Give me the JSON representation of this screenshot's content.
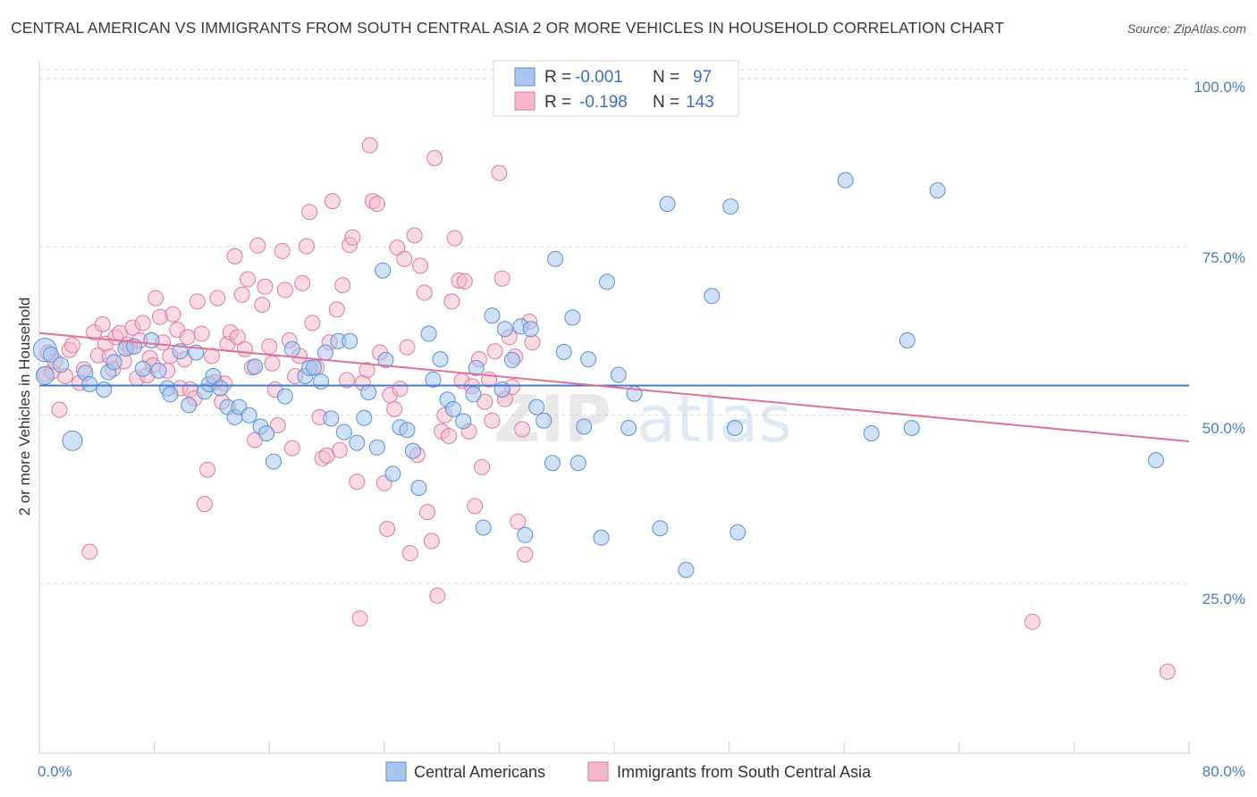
{
  "title": "CENTRAL AMERICAN VS IMMIGRANTS FROM SOUTH CENTRAL ASIA 2 OR MORE VEHICLES IN HOUSEHOLD CORRELATION CHART",
  "source": "Source: ZipAtlas.com",
  "watermark": {
    "zip": "ZIP",
    "atlas": "atlas"
  },
  "colors": {
    "blue": "#5b8fd6",
    "blue_fill": "#aac6ee",
    "pink": "#e07aa0",
    "pink_fill": "#f4b6cb",
    "blue_line": "#3f7bd0",
    "pink_line": "#e0709a",
    "grid": "#dcdcdc",
    "tick_text": "#4a7bc8"
  },
  "legend": {
    "rows": [
      {
        "r_label": "R =",
        "r_value": "-0.001",
        "n_label": "N =",
        "n_value": "97"
      },
      {
        "r_label": "R =",
        "r_value": "-0.198",
        "n_label": "N =",
        "n_value": "143"
      }
    ]
  },
  "bottom_legend": [
    "Central Americans",
    "Immigrants from South Central Asia"
  ],
  "chart_data": {
    "type": "scatter",
    "title": "CENTRAL AMERICAN VS IMMIGRANTS FROM SOUTH CENTRAL ASIA 2 OR MORE VEHICLES IN HOUSEHOLD CORRELATION CHART",
    "ylabel": "2 or more Vehicles in Household",
    "xlabel": "",
    "xlim": [
      0,
      80
    ],
    "ylim": [
      0,
      105
    ],
    "x_tick_labels": [
      "0.0%",
      "80.0%"
    ],
    "y_tick_labels": [
      "25.0%",
      "50.0%",
      "75.0%",
      "100.0%"
    ],
    "y_ticks": [
      25,
      50,
      75,
      100
    ],
    "grid": true,
    "legend_position": "top-center",
    "series": [
      {
        "name": "Central Americans",
        "color": "#5b8fd6",
        "trend": {
          "x": [
            0,
            80
          ],
          "y": [
            54.4,
            54.4
          ]
        },
        "points": [
          [
            0.4,
            59.7
          ],
          [
            0.8,
            59
          ],
          [
            1.5,
            57.5
          ],
          [
            2.3,
            46.2
          ],
          [
            3.2,
            56.3
          ],
          [
            3.5,
            54.6
          ],
          [
            4.5,
            53.8
          ],
          [
            4.8,
            56.4
          ],
          [
            5.2,
            57.9
          ],
          [
            6,
            59.9
          ],
          [
            6.6,
            60.2
          ],
          [
            7.2,
            56.9
          ],
          [
            7.8,
            61.1
          ],
          [
            8.3,
            56.6
          ],
          [
            8.9,
            54
          ],
          [
            9.1,
            53.1
          ],
          [
            9.8,
            59.5
          ],
          [
            10.4,
            51.5
          ],
          [
            10.9,
            59.3
          ],
          [
            11.5,
            53.5
          ],
          [
            11.8,
            54.6
          ],
          [
            12.1,
            55.8
          ],
          [
            12.6,
            54
          ],
          [
            13.1,
            51.2
          ],
          [
            13.6,
            49.7
          ],
          [
            13.9,
            51.2
          ],
          [
            14.6,
            50
          ],
          [
            15,
            57.2
          ],
          [
            15.4,
            48.3
          ],
          [
            15.8,
            47.3
          ],
          [
            16.3,
            43.1
          ],
          [
            17.1,
            52.8
          ],
          [
            17.6,
            59.8
          ],
          [
            18.5,
            55.8
          ],
          [
            18.8,
            57
          ],
          [
            19.1,
            57.1
          ],
          [
            19.6,
            55
          ],
          [
            19.9,
            59.3
          ],
          [
            20.3,
            49.5
          ],
          [
            20.8,
            61
          ],
          [
            21.2,
            47.5
          ],
          [
            21.6,
            61
          ],
          [
            22.1,
            45.9
          ],
          [
            22.6,
            49.6
          ],
          [
            22.9,
            53.4
          ],
          [
            23.5,
            45.2
          ],
          [
            23.9,
            71.5
          ],
          [
            24.1,
            58.2
          ],
          [
            24.6,
            41.3
          ],
          [
            25.1,
            48.2
          ],
          [
            25.6,
            47.8
          ],
          [
            26,
            44.7
          ],
          [
            26.4,
            39.2
          ],
          [
            27.1,
            62.1
          ],
          [
            27.4,
            55.3
          ],
          [
            27.9,
            58.3
          ],
          [
            28.4,
            52.3
          ],
          [
            28.8,
            50.9
          ],
          [
            29.5,
            49.1
          ],
          [
            30.2,
            53.1
          ],
          [
            30.4,
            57
          ],
          [
            30.9,
            33.3
          ],
          [
            31.5,
            64.8
          ],
          [
            32.2,
            53.8
          ],
          [
            32.4,
            62.8
          ],
          [
            32.9,
            58.2
          ],
          [
            33.5,
            63.2
          ],
          [
            33.8,
            32.2
          ],
          [
            34.2,
            62.8
          ],
          [
            34.6,
            51.2
          ],
          [
            35.1,
            49.2
          ],
          [
            35.7,
            42.9
          ],
          [
            35.9,
            73.2
          ],
          [
            36.5,
            59.4
          ],
          [
            37.1,
            64.5
          ],
          [
            37.5,
            42.9
          ],
          [
            37.9,
            48.3
          ],
          [
            38.2,
            58.3
          ],
          [
            39.1,
            31.8
          ],
          [
            39.5,
            69.8
          ],
          [
            40.3,
            56
          ],
          [
            41,
            48.1
          ],
          [
            41.4,
            53.2
          ],
          [
            43.2,
            33.2
          ],
          [
            43.7,
            81.4
          ],
          [
            45,
            27
          ],
          [
            46.8,
            67.7
          ],
          [
            48.1,
            81
          ],
          [
            48.4,
            48.1
          ],
          [
            48.6,
            32.6
          ],
          [
            56.1,
            84.9
          ],
          [
            57.9,
            47.3
          ],
          [
            60.4,
            61.1
          ],
          [
            60.7,
            48.1
          ],
          [
            62.5,
            83.4
          ],
          [
            77.7,
            43.3
          ],
          [
            0.4,
            55.9
          ]
        ],
        "sizes": {
          "0": 26,
          "3": 22,
          "96": 20
        }
      },
      {
        "name": "Immigrants from South Central Asia",
        "color": "#e07aa0",
        "trend": {
          "x": [
            0,
            80
          ],
          "y": [
            62.2,
            46.1
          ]
        },
        "points": [
          [
            0.4,
            56.1
          ],
          [
            0.9,
            56.5
          ],
          [
            1.1,
            58
          ],
          [
            1.4,
            50.8
          ],
          [
            1.8,
            55.8
          ],
          [
            2.1,
            59.7
          ],
          [
            2.3,
            60.4
          ],
          [
            2.8,
            54.8
          ],
          [
            3.1,
            56.8
          ],
          [
            3.5,
            29.7
          ],
          [
            3.8,
            62.3
          ],
          [
            4.1,
            58.9
          ],
          [
            4.4,
            63.5
          ],
          [
            4.6,
            60.6
          ],
          [
            4.9,
            58.7
          ],
          [
            5.1,
            56.8
          ],
          [
            5.3,
            61.6
          ],
          [
            5.6,
            62.2
          ],
          [
            5.9,
            58
          ],
          [
            6.1,
            60.5
          ],
          [
            6.3,
            60.1
          ],
          [
            6.5,
            63
          ],
          [
            6.8,
            55.5
          ],
          [
            7,
            61.1
          ],
          [
            7.2,
            63.7
          ],
          [
            7.5,
            55.9
          ],
          [
            7.7,
            58.5
          ],
          [
            7.9,
            57.4
          ],
          [
            8.1,
            67.4
          ],
          [
            8.4,
            64.6
          ],
          [
            8.6,
            60.8
          ],
          [
            8.9,
            56.6
          ],
          [
            9.1,
            58.8
          ],
          [
            9.3,
            65
          ],
          [
            9.6,
            62.7
          ],
          [
            9.8,
            54
          ],
          [
            10.1,
            58.3
          ],
          [
            10.3,
            61.6
          ],
          [
            10.5,
            53.8
          ],
          [
            10.8,
            52.5
          ],
          [
            11,
            66.9
          ],
          [
            11.3,
            62.1
          ],
          [
            11.5,
            36.8
          ],
          [
            11.7,
            41.9
          ],
          [
            12,
            58.8
          ],
          [
            12.2,
            54.9
          ],
          [
            12.4,
            67.4
          ],
          [
            12.7,
            52
          ],
          [
            12.9,
            54.7
          ],
          [
            13.1,
            60.6
          ],
          [
            13.3,
            62.3
          ],
          [
            13.6,
            73.6
          ],
          [
            13.8,
            61.6
          ],
          [
            14.1,
            67.9
          ],
          [
            14.3,
            59.8
          ],
          [
            14.5,
            70.2
          ],
          [
            14.8,
            57.1
          ],
          [
            15,
            46.3
          ],
          [
            15.2,
            75.2
          ],
          [
            15.5,
            66.4
          ],
          [
            15.7,
            69.1
          ],
          [
            16,
            60.2
          ],
          [
            16.2,
            57.7
          ],
          [
            16.4,
            53.8
          ],
          [
            16.6,
            48.5
          ],
          [
            16.9,
            74.4
          ],
          [
            17.1,
            68.6
          ],
          [
            17.4,
            61.1
          ],
          [
            17.6,
            45.1
          ],
          [
            17.8,
            55.8
          ],
          [
            18.1,
            58.8
          ],
          [
            18.3,
            69.6
          ],
          [
            18.6,
            75.1
          ],
          [
            18.8,
            80.2
          ],
          [
            19,
            63.7
          ],
          [
            19.3,
            57.1
          ],
          [
            19.5,
            49.7
          ],
          [
            19.7,
            43.6
          ],
          [
            20,
            44
          ],
          [
            20.2,
            60.8
          ],
          [
            20.4,
            81.8
          ],
          [
            20.7,
            65.7
          ],
          [
            20.9,
            44.8
          ],
          [
            21.1,
            69.3
          ],
          [
            21.4,
            55.2
          ],
          [
            21.6,
            75.3
          ],
          [
            21.8,
            76.4
          ],
          [
            22.1,
            40.1
          ],
          [
            22.3,
            19.8
          ],
          [
            22.5,
            54.8
          ],
          [
            22.8,
            56.7
          ],
          [
            23,
            90.1
          ],
          [
            23.2,
            81.8
          ],
          [
            23.5,
            81.4
          ],
          [
            23.7,
            59.3
          ],
          [
            24,
            39.9
          ],
          [
            24.2,
            33.1
          ],
          [
            24.4,
            53
          ],
          [
            24.7,
            50.9
          ],
          [
            24.9,
            74.9
          ],
          [
            25.1,
            53.9
          ],
          [
            25.4,
            73.2
          ],
          [
            25.6,
            60.1
          ],
          [
            25.8,
            29.5
          ],
          [
            26.1,
            76.7
          ],
          [
            26.3,
            44.1
          ],
          [
            26.5,
            72.2
          ],
          [
            26.8,
            68.2
          ],
          [
            27,
            35.6
          ],
          [
            27.3,
            31.3
          ],
          [
            27.5,
            88.2
          ],
          [
            27.7,
            23.2
          ],
          [
            28,
            47.6
          ],
          [
            28.2,
            50
          ],
          [
            28.5,
            46.9
          ],
          [
            28.7,
            66.9
          ],
          [
            28.9,
            76.3
          ],
          [
            29.2,
            70
          ],
          [
            29.4,
            55.1
          ],
          [
            29.6,
            69.9
          ],
          [
            29.9,
            47.6
          ],
          [
            30.1,
            54.3
          ],
          [
            30.3,
            36.5
          ],
          [
            30.6,
            58.3
          ],
          [
            30.8,
            42.3
          ],
          [
            31,
            52
          ],
          [
            31.3,
            55.3
          ],
          [
            31.5,
            49.2
          ],
          [
            31.7,
            59.5
          ],
          [
            32,
            86
          ],
          [
            32.2,
            70.3
          ],
          [
            32.4,
            52.4
          ],
          [
            32.7,
            61.6
          ],
          [
            32.9,
            54.2
          ],
          [
            33.1,
            58.7
          ],
          [
            33.3,
            34.2
          ],
          [
            33.6,
            47.9
          ],
          [
            33.8,
            29.3
          ],
          [
            34.1,
            63.9
          ],
          [
            34.3,
            60.8
          ],
          [
            69.1,
            19.3
          ],
          [
            78.5,
            11.9
          ],
          [
            0.6,
            59.3
          ]
        ]
      }
    ]
  },
  "axis": {
    "ylabel": "2 or more Vehicles in Household",
    "x_left": "0.0%",
    "x_right": "80.0%",
    "y_labels": [
      "100.0%",
      "75.0%",
      "50.0%",
      "25.0%"
    ]
  }
}
